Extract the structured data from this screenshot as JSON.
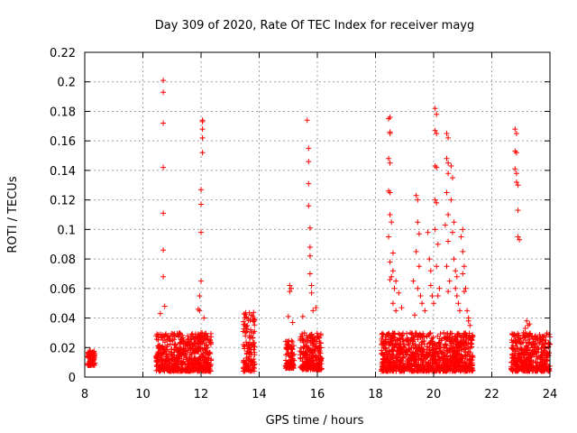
{
  "chart_data": {
    "type": "scatter",
    "title": "Day 309 of 2020, Rate Of TEC Index for receiver mayg",
    "xlabel": "GPS time / hours",
    "ylabel": "ROTI / TECUs",
    "xlim": [
      8,
      24
    ],
    "ylim": [
      0,
      0.22
    ],
    "xticks": [
      "8",
      "10",
      "12",
      "14",
      "16",
      "18",
      "20",
      "22",
      "24"
    ],
    "yticks": [
      "0",
      "0.02",
      "0.04",
      "0.06",
      "0.08",
      "0.1",
      "0.12",
      "0.14",
      "0.16",
      "0.18",
      "0.2",
      "0.22"
    ],
    "grid": true,
    "marker": "plus",
    "color": "#ff0000",
    "series": [
      {
        "name": "ROTI",
        "clusters": [
          {
            "x_range": [
              8.1,
              8.35
            ],
            "base": [
              0.008,
              0.018
            ],
            "peaks": []
          },
          {
            "x_range": [
              10.45,
              12.35
            ],
            "base": [
              0.004,
              0.03
            ],
            "peaks": [
              [
                10.7,
                0.201
              ],
              [
                10.7,
                0.193
              ],
              [
                10.7,
                0.172
              ],
              [
                10.7,
                0.142
              ],
              [
                10.7,
                0.111
              ],
              [
                10.7,
                0.086
              ],
              [
                10.7,
                0.068
              ],
              [
                10.75,
                0.048
              ],
              [
                10.6,
                0.043
              ],
              [
                11.95,
                0.055
              ],
              [
                11.95,
                0.045
              ],
              [
                12.0,
                0.065
              ],
              [
                12.0,
                0.098
              ],
              [
                12.0,
                0.117
              ],
              [
                12.0,
                0.127
              ],
              [
                12.05,
                0.152
              ],
              [
                12.05,
                0.162
              ],
              [
                12.05,
                0.168
              ],
              [
                12.05,
                0.173
              ],
              [
                12.05,
                0.174
              ],
              [
                11.9,
                0.046
              ],
              [
                12.1,
                0.04
              ]
            ]
          },
          {
            "x_range": [
              13.45,
              13.85
            ],
            "base": [
              0.004,
              0.045
            ],
            "peaks": []
          },
          {
            "x_range": [
              14.9,
              15.2
            ],
            "base": [
              0.006,
              0.025
            ],
            "peaks": [
              [
                15.05,
                0.062
              ],
              [
                15.1,
                0.06
              ],
              [
                15.05,
                0.058
              ],
              [
                15.0,
                0.041
              ],
              [
                15.15,
                0.037
              ]
            ]
          },
          {
            "x_range": [
              15.4,
              16.15
            ],
            "base": [
              0.005,
              0.03
            ],
            "peaks": [
              [
                15.65,
                0.174
              ],
              [
                15.7,
                0.155
              ],
              [
                15.7,
                0.146
              ],
              [
                15.7,
                0.131
              ],
              [
                15.7,
                0.116
              ],
              [
                15.75,
                0.101
              ],
              [
                15.75,
                0.088
              ],
              [
                15.75,
                0.082
              ],
              [
                15.75,
                0.07
              ],
              [
                15.8,
                0.062
              ],
              [
                15.8,
                0.057
              ],
              [
                15.85,
                0.045
              ],
              [
                15.95,
                0.047
              ],
              [
                15.5,
                0.041
              ]
            ]
          },
          {
            "x_range": [
              18.2,
              21.35
            ],
            "base": [
              0.004,
              0.03
            ],
            "peaks": [
              [
                18.45,
                0.175
              ],
              [
                18.5,
                0.176
              ],
              [
                18.5,
                0.166
              ],
              [
                18.5,
                0.165
              ],
              [
                18.45,
                0.148
              ],
              [
                18.5,
                0.145
              ],
              [
                18.45,
                0.126
              ],
              [
                18.5,
                0.125
              ],
              [
                18.5,
                0.11
              ],
              [
                18.55,
                0.105
              ],
              [
                18.45,
                0.095
              ],
              [
                18.6,
                0.084
              ],
              [
                18.5,
                0.078
              ],
              [
                18.6,
                0.072
              ],
              [
                18.55,
                0.068
              ],
              [
                18.5,
                0.066
              ],
              [
                18.7,
                0.065
              ],
              [
                18.65,
                0.06
              ],
              [
                18.8,
                0.057
              ],
              [
                18.6,
                0.05
              ],
              [
                18.7,
                0.045
              ],
              [
                18.9,
                0.047
              ],
              [
                19.4,
                0.123
              ],
              [
                19.45,
                0.12
              ],
              [
                19.45,
                0.105
              ],
              [
                19.5,
                0.097
              ],
              [
                19.4,
                0.085
              ],
              [
                19.5,
                0.075
              ],
              [
                19.3,
                0.065
              ],
              [
                19.45,
                0.06
              ],
              [
                19.55,
                0.055
              ],
              [
                19.6,
                0.05
              ],
              [
                19.7,
                0.045
              ],
              [
                19.35,
                0.042
              ],
              [
                19.8,
                0.098
              ],
              [
                19.85,
                0.08
              ],
              [
                19.9,
                0.072
              ],
              [
                19.9,
                0.062
              ],
              [
                19.95,
                0.055
              ],
              [
                20.0,
                0.05
              ],
              [
                20.05,
                0.182
              ],
              [
                20.1,
                0.178
              ],
              [
                20.05,
                0.167
              ],
              [
                20.1,
                0.165
              ],
              [
                20.05,
                0.143
              ],
              [
                20.1,
                0.142
              ],
              [
                20.05,
                0.12
              ],
              [
                20.1,
                0.118
              ],
              [
                20.05,
                0.1
              ],
              [
                20.15,
                0.09
              ],
              [
                20.1,
                0.075
              ],
              [
                20.2,
                0.06
              ],
              [
                20.15,
                0.055
              ],
              [
                20.45,
                0.165
              ],
              [
                20.5,
                0.162
              ],
              [
                20.45,
                0.148
              ],
              [
                20.5,
                0.145
              ],
              [
                20.5,
                0.138
              ],
              [
                20.45,
                0.125
              ],
              [
                20.5,
                0.11
              ],
              [
                20.4,
                0.103
              ],
              [
                20.5,
                0.092
              ],
              [
                20.45,
                0.075
              ],
              [
                20.55,
                0.065
              ],
              [
                20.5,
                0.058
              ],
              [
                20.6,
                0.143
              ],
              [
                20.65,
                0.135
              ],
              [
                20.6,
                0.12
              ],
              [
                20.7,
                0.105
              ],
              [
                20.65,
                0.098
              ],
              [
                20.7,
                0.08
              ],
              [
                20.75,
                0.072
              ],
              [
                20.8,
                0.068
              ],
              [
                20.75,
                0.06
              ],
              [
                20.8,
                0.055
              ],
              [
                20.85,
                0.05
              ],
              [
                20.9,
                0.045
              ],
              [
                21.0,
                0.1
              ],
              [
                20.95,
                0.095
              ],
              [
                21.0,
                0.085
              ],
              [
                21.05,
                0.075
              ],
              [
                21.0,
                0.07
              ],
              [
                21.1,
                0.06
              ],
              [
                21.05,
                0.058
              ],
              [
                21.15,
                0.045
              ],
              [
                21.2,
                0.04
              ],
              [
                21.25,
                0.035
              ],
              [
                21.2,
                0.038
              ]
            ]
          },
          {
            "x_range": [
              22.65,
              24.0
            ],
            "base": [
              0.004,
              0.03
            ],
            "peaks": [
              [
                22.8,
                0.168
              ],
              [
                22.85,
                0.165
              ],
              [
                22.8,
                0.153
              ],
              [
                22.85,
                0.152
              ],
              [
                22.8,
                0.141
              ],
              [
                22.85,
                0.138
              ],
              [
                22.85,
                0.132
              ],
              [
                22.9,
                0.13
              ],
              [
                22.9,
                0.113
              ],
              [
                22.9,
                0.095
              ],
              [
                22.95,
                0.093
              ],
              [
                23.2,
                0.038
              ],
              [
                23.25,
                0.035
              ],
              [
                23.15,
                0.033
              ],
              [
                23.3,
                0.036
              ]
            ]
          }
        ]
      }
    ]
  }
}
